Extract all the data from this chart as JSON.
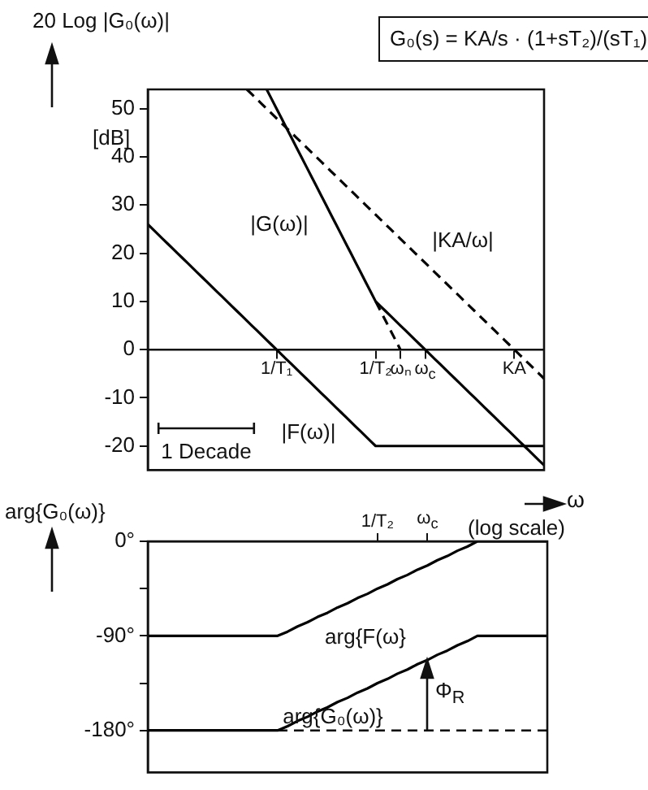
{
  "chart_data": [
    {
      "type": "line",
      "ylabel": "20 Log |G₀(ω)|",
      "xlabel": "ω",
      "categories": [
        null,
        null,
        null,
        null,
        null,
        null,
        null,
        null,
        null,
        null,
        null,
        null,
        null,
        null,
        null,
        null,
        null,
        null,
        null,
        null,
        null,
        null,
        null,
        null,
        null,
        null,
        "1/T₁",
        null,
        null,
        null,
        null,
        null,
        null,
        null,
        null,
        null,
        null,
        null,
        null,
        null,
        null,
        null,
        null,
        null,
        null,
        null,
        "1/T₂",
        null,
        null,
        null,
        null,
        "ωₙ",
        null,
        null,
        null,
        null,
        "ω$_{c}$",
        null,
        null,
        null,
        null,
        null,
        null,
        null,
        null,
        null,
        null,
        null,
        null,
        null,
        null,
        null,
        null,
        null,
        "KA",
        null,
        null,
        null,
        null,
        null,
        null
      ],
      "ylim": [
        -25,
        54
      ],
      "yticks": [
        -20,
        -10,
        0,
        10,
        20,
        30,
        40,
        50
      ],
      "grid": false,
      "legend": false,
      "marker": "none",
      "line_style": "solid",
      "series": [
        {
          "color": "#000000",
          "values": [
            26,
            25,
            24,
            23,
            22,
            21,
            20,
            19,
            18,
            17,
            16,
            15,
            14,
            13,
            12,
            11,
            10,
            9,
            8,
            7,
            6,
            5,
            4,
            3,
            2,
            1,
            0,
            -1,
            -2,
            -3,
            -4,
            -5,
            -6,
            -7,
            -8,
            -9,
            -10,
            -11,
            -12,
            -13,
            -14,
            -15,
            -16,
            -17,
            -18,
            -19,
            -20,
            -20,
            -20,
            -20,
            -20,
            -20,
            -20,
            -20,
            -20,
            -20,
            -20,
            -20,
            -20,
            -20,
            -20,
            -20,
            -20,
            -20,
            -20,
            -20,
            -20,
            -20,
            -20,
            -20,
            -20,
            -20,
            -20,
            -20,
            -20,
            -20,
            -20,
            -20,
            -20,
            -20,
            -20
          ]
        },
        {
          "color": "#000000",
          "values": [
            null,
            null,
            null,
            null,
            null,
            null,
            null,
            null,
            null,
            null,
            null,
            null,
            null,
            null,
            null,
            null,
            null,
            null,
            null,
            null,
            null,
            null,
            null,
            null,
            54,
            52,
            50,
            48,
            46,
            44,
            42,
            40,
            38,
            36,
            34,
            32,
            30,
            28,
            26,
            24,
            22,
            20,
            18,
            16,
            14,
            12,
            10,
            9,
            8,
            7,
            6,
            5,
            4,
            3,
            2,
            1,
            0,
            -1,
            -2,
            -3,
            -4,
            -5,
            -6,
            -7,
            -8,
            -9,
            -10,
            -11,
            -12,
            -13,
            -14,
            -15,
            -16,
            -17,
            -18,
            -19,
            -20,
            -21,
            -22,
            -23,
            -24
          ]
        },
        {
          "color": "#000000",
          "line_style": "dashed",
          "values": [
            null,
            null,
            null,
            null,
            null,
            null,
            null,
            null,
            null,
            null,
            null,
            null,
            null,
            null,
            null,
            null,
            null,
            null,
            null,
            null,
            54,
            53,
            52,
            51,
            50,
            49,
            48,
            47,
            46,
            45,
            44,
            43,
            42,
            41,
            40,
            39,
            38,
            37,
            36,
            35,
            34,
            33,
            32,
            31,
            30,
            29,
            28,
            27,
            26,
            25,
            24,
            23,
            22,
            21,
            20,
            19,
            18,
            17,
            16,
            15,
            14,
            13,
            12,
            11,
            10,
            9,
            8,
            7,
            6,
            5,
            4,
            3,
            2,
            1,
            0,
            -1,
            -2,
            -3,
            -4,
            -5,
            -6
          ]
        },
        {
          "color": "#000000",
          "line_style": "dashed",
          "values": [
            null,
            null,
            null,
            null,
            null,
            null,
            null,
            null,
            null,
            null,
            null,
            null,
            null,
            null,
            null,
            null,
            null,
            null,
            null,
            null,
            null,
            null,
            null,
            null,
            null,
            null,
            null,
            null,
            null,
            null,
            null,
            null,
            null,
            null,
            null,
            null,
            null,
            null,
            null,
            null,
            null,
            null,
            null,
            null,
            null,
            null,
            10,
            8,
            6,
            4,
            2,
            0,
            null,
            null,
            null,
            null,
            null,
            null,
            null,
            null,
            null,
            null,
            null,
            null,
            null,
            null,
            null,
            null,
            null,
            null,
            null,
            null,
            null,
            null,
            null,
            null,
            null,
            null,
            null,
            null,
            null
          ]
        }
      ],
      "annotations": [
        "G₀(s) = KA/s · (1+sT₂)/(sT₁)",
        "[dB]",
        "(log scale)",
        "|G(ω)|",
        "|KA/ω|",
        "|F(ω)|",
        "1 Decade"
      ]
    },
    {
      "type": "line",
      "ylabel": "arg{G₀(ω)}",
      "categories": [
        null,
        null,
        null,
        null,
        null,
        null,
        null,
        null,
        null,
        null,
        null,
        null,
        null,
        null,
        null,
        null,
        null,
        null,
        null,
        null,
        null,
        null,
        null,
        "1/T₂",
        null,
        null,
        null,
        null,
        "ω$_{c}$",
        null,
        null,
        null,
        null,
        null,
        null,
        null,
        null,
        null,
        null,
        null,
        null
      ],
      "ylim": [
        -220,
        0
      ],
      "yticks": [
        {
          "value": 0,
          "label": "0°"
        },
        {
          "value": -45,
          "label": null
        },
        {
          "value": -90,
          "label": "-90°"
        },
        {
          "value": -135,
          "label": null
        },
        {
          "value": -180,
          "label": "-180°"
        }
      ],
      "grid": false,
      "legend": false,
      "marker": "none",
      "line_style": "solid",
      "series": [
        {
          "color": "#000000",
          "values": [
            -90,
            -90,
            -90,
            -90,
            -90,
            -90,
            -90,
            -90,
            -90,
            -90,
            -90,
            -90,
            -90,
            -90,
            -86,
            -81,
            -77,
            -72,
            -68,
            -63,
            -59,
            -54,
            -50,
            -45,
            -41,
            -36,
            -32,
            -27,
            -23,
            -18,
            -14,
            -9,
            -5,
            0,
            0,
            0,
            0,
            0,
            0,
            0,
            0
          ]
        },
        {
          "color": "#000000",
          "values": [
            -180,
            -180,
            -180,
            -180,
            -180,
            -180,
            -180,
            -180,
            -180,
            -180,
            -180,
            -180,
            -180,
            -180,
            -176,
            -171,
            -167,
            -162,
            -158,
            -153,
            -149,
            -144,
            -140,
            -135,
            -131,
            -126,
            -122,
            -117,
            -113,
            -108,
            -104,
            -99,
            -95,
            -90,
            -90,
            -90,
            -90,
            -90,
            -90,
            -90,
            -90
          ]
        }
      ],
      "ref_lines": [
        {
          "axis": "y",
          "value": -180,
          "line_style": "dashed",
          "color": "#000000"
        }
      ],
      "annotations": [
        "arg{F(ω}",
        "arg{G₀(ω)}",
        "Φ$_{R}$"
      ]
    }
  ]
}
